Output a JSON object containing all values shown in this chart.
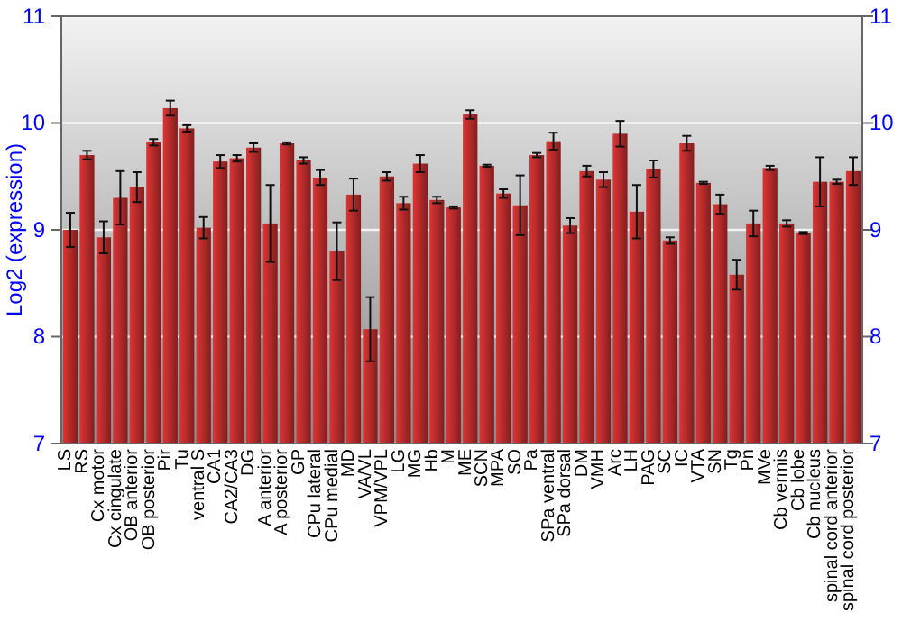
{
  "chart_data": {
    "type": "bar",
    "ylabel": "Log2 (expression)",
    "categories": [
      "LS",
      "RS",
      "Cx motor",
      "Cx cingulate",
      "OB anterior",
      "OB posterior",
      "Pir",
      "Tu",
      "ventral S",
      "CA1",
      "CA2/CA3",
      "DG",
      "A anterior",
      "A posterior",
      "GP",
      "CPu lateral",
      "CPu medial",
      "MD",
      "VA/VL",
      "VPM/VPL",
      "LG",
      "MG",
      "Hb",
      "M",
      "ME",
      "SCN",
      "MPA",
      "SO",
      "Pa",
      "SPa ventral",
      "SPa dorsal",
      "DM",
      "VMH",
      "Arc",
      "LH",
      "PAG",
      "SC",
      "IC",
      "VTA",
      "SN",
      "Tg",
      "Pn",
      "MVe",
      "Cb vermis",
      "Cb lobe",
      "Cb nucleus",
      "spinal cord anterior",
      "spinal cord posterior"
    ],
    "values": [
      9.0,
      9.7,
      8.93,
      9.3,
      9.4,
      9.82,
      10.14,
      9.95,
      9.02,
      9.64,
      9.67,
      9.77,
      9.06,
      9.81,
      9.65,
      9.49,
      8.8,
      9.33,
      8.07,
      9.5,
      9.25,
      9.62,
      9.28,
      9.21,
      10.08,
      9.6,
      9.34,
      9.23,
      9.7,
      9.83,
      9.04,
      9.55,
      9.47,
      9.9,
      9.17,
      9.57,
      8.9,
      9.81,
      9.44,
      9.24,
      8.58,
      9.06,
      9.58,
      9.06,
      8.97,
      9.45,
      9.45,
      9.55
    ],
    "errors": [
      0.16,
      0.04,
      0.15,
      0.25,
      0.14,
      0.03,
      0.07,
      0.03,
      0.1,
      0.06,
      0.03,
      0.04,
      0.36,
      0.01,
      0.03,
      0.07,
      0.27,
      0.15,
      0.3,
      0.04,
      0.06,
      0.08,
      0.03,
      0.01,
      0.04,
      0.01,
      0.04,
      0.28,
      0.02,
      0.08,
      0.07,
      0.05,
      0.07,
      0.12,
      0.25,
      0.08,
      0.03,
      0.07,
      0.01,
      0.09,
      0.14,
      0.12,
      0.02,
      0.03,
      0.01,
      0.23,
      0.02,
      0.13
    ],
    "color": "#b22a2a",
    "ylim": [
      7,
      11
    ],
    "yticks": [
      7,
      8,
      9,
      10,
      11
    ],
    "y2lim": [
      7,
      11
    ],
    "y2ticks": [
      7,
      8,
      9,
      10,
      11
    ],
    "grid": "y"
  }
}
